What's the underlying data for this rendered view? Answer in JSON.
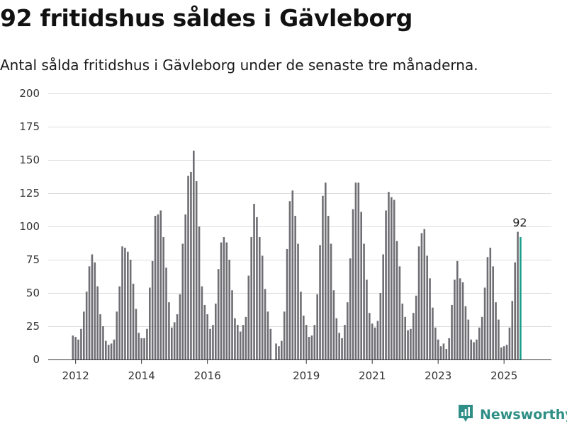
{
  "header": {
    "title": "92 fritidshus såldes i Gävleborg",
    "subtitle": "Antal sålda fritidshus i Gävleborg under de senaste tre månaderna."
  },
  "brand": {
    "name": "Newsworthy",
    "icon": "newsworthy-logo-icon",
    "color": "#2f8f86"
  },
  "colors": {
    "bar": "#6f6e73",
    "highlight": "#1a9e8c"
  },
  "chart_data": {
    "type": "bar",
    "title": "",
    "xlabel": "",
    "ylabel": "",
    "ylim": [
      0,
      200
    ],
    "y_ticks": [
      0,
      25,
      50,
      75,
      100,
      125,
      150,
      175,
      200
    ],
    "x_tick_labels": [
      "2012",
      "2014",
      "2016",
      "2019",
      "2021",
      "2023",
      "2025"
    ],
    "grid": true,
    "legend": "none",
    "highlight_last": true,
    "last_value_label": "92",
    "series_start": "2011-12",
    "series": [
      {
        "values": [
          18,
          17,
          15,
          23,
          36,
          51,
          70,
          79,
          73,
          55,
          34,
          25,
          14,
          11,
          12,
          15,
          36,
          55,
          85,
          84,
          81,
          75,
          57,
          38,
          20,
          16,
          16,
          23,
          54,
          74,
          108,
          109,
          112,
          92,
          69,
          43,
          24,
          28,
          34,
          49,
          87,
          109,
          138,
          141,
          157,
          134,
          100,
          55,
          41,
          34,
          23,
          26,
          42,
          68,
          88,
          92,
          88,
          75,
          52,
          31,
          26,
          21,
          26,
          32,
          63,
          92,
          117,
          107,
          92,
          78,
          53,
          36,
          23,
          0,
          12,
          10,
          14,
          36,
          83,
          119,
          127,
          108,
          87,
          51,
          33,
          26,
          17,
          18,
          26,
          49,
          86,
          123,
          133,
          108,
          87,
          52,
          31,
          20,
          16,
          26,
          43,
          76,
          113,
          133,
          133,
          111,
          87,
          60,
          35,
          27,
          24,
          29,
          50,
          79,
          112,
          126,
          122,
          120,
          89,
          70,
          42,
          32,
          22,
          23,
          35,
          48,
          85,
          95,
          98,
          78,
          61,
          39,
          24,
          15,
          10,
          12,
          8,
          16,
          41,
          60,
          74,
          61,
          58,
          40,
          30,
          15,
          13,
          15,
          24,
          32,
          54,
          77,
          84,
          70,
          43,
          30,
          9,
          10,
          11,
          24,
          44,
          73,
          96,
          92
        ]
      }
    ]
  }
}
